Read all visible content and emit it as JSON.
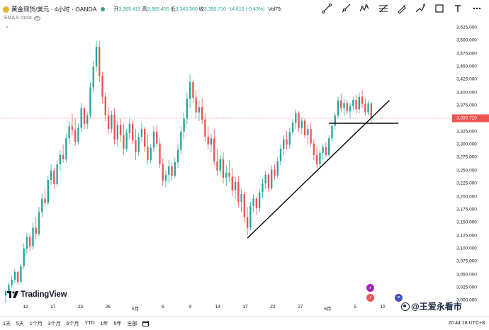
{
  "header": {
    "symbol": "黄金现货/美元 · 4小时 · OANDA",
    "ohlc": [
      {
        "label": "开",
        "value": "3,365.415",
        "dir": "up"
      },
      {
        "label": "高",
        "value": "3,365.455",
        "dir": "up"
      },
      {
        "label": "低",
        "value": "3,343.560",
        "dir": "up"
      },
      {
        "label": "收",
        "value": "3,350.710",
        "dir": "up"
      }
    ],
    "change": "-14.615 (-0.43%)",
    "vol_label": "Vol",
    "vol_value": "79.",
    "indicator": "EMA 9 close",
    "collapse": "^"
  },
  "toolbar": {
    "icons": [
      "trend-line-icon",
      "ray-line-icon",
      "fib-retracement-icon",
      "pattern-icon",
      "brush-icon",
      "path-icon",
      "rectangle-icon",
      "text-icon",
      "more-icon"
    ]
  },
  "price_axis": {
    "ticks": [
      "3,525.000",
      "3,500.000",
      "3,475.000",
      "3,450.000",
      "3,425.000",
      "3,400.000",
      "3,375.000",
      "3,325.000",
      "3,300.000",
      "3,275.000",
      "3,250.000",
      "3,225.000",
      "3,200.000",
      "3,175.000",
      "3,150.000",
      "3,125.000",
      "3,100.000",
      "3,075.000",
      "3,050.000",
      "3,025.000",
      "3,000.000"
    ],
    "last_price": "3,350.710"
  },
  "time_axis": {
    "ticks": [
      "12",
      "17",
      "23",
      "26",
      "5月",
      "6",
      "9",
      "14",
      "17",
      "22",
      "27",
      "6月",
      "5",
      "10"
    ]
  },
  "bottom_bar": {
    "ranges": [
      "1天",
      "5天",
      "1个月",
      "3个月",
      "6个月",
      "YTD",
      "1年",
      "5年",
      "全部"
    ],
    "clock": "20:44:18 UTC+8"
  },
  "logo": {
    "name": "TradingView"
  },
  "watermark": {
    "text": "@王爱永看市"
  },
  "colors": {
    "up": "#26a69a",
    "down": "#ef5350",
    "last_price": "#ef5350",
    "trend_line": "#000000"
  },
  "chart_data": {
    "type": "candlestick",
    "price_range": [
      2995,
      3540
    ],
    "last_price": 3350.71,
    "candles": [
      [
        3010,
        3020,
        2995,
        3018
      ],
      [
        3018,
        3035,
        3012,
        3030
      ],
      [
        3030,
        3048,
        3024,
        3040
      ],
      [
        3040,
        3060,
        3034,
        3055
      ],
      [
        3055,
        3058,
        3030,
        3036
      ],
      [
        3036,
        3070,
        3032,
        3066
      ],
      [
        3066,
        3110,
        3060,
        3100
      ],
      [
        3100,
        3130,
        3090,
        3122
      ],
      [
        3122,
        3128,
        3095,
        3104
      ],
      [
        3104,
        3150,
        3098,
        3140
      ],
      [
        3140,
        3160,
        3118,
        3128
      ],
      [
        3128,
        3180,
        3124,
        3170
      ],
      [
        3170,
        3205,
        3160,
        3196
      ],
      [
        3196,
        3215,
        3180,
        3188
      ],
      [
        3188,
        3240,
        3184,
        3232
      ],
      [
        3232,
        3262,
        3222,
        3250
      ],
      [
        3250,
        3255,
        3215,
        3224
      ],
      [
        3224,
        3270,
        3218,
        3262
      ],
      [
        3262,
        3290,
        3250,
        3280
      ],
      [
        3280,
        3300,
        3265,
        3272
      ],
      [
        3272,
        3320,
        3266,
        3312
      ],
      [
        3312,
        3345,
        3300,
        3335
      ],
      [
        3335,
        3360,
        3318,
        3328
      ],
      [
        3328,
        3350,
        3298,
        3305
      ],
      [
        3305,
        3340,
        3300,
        3332
      ],
      [
        3332,
        3380,
        3325,
        3370
      ],
      [
        3370,
        3372,
        3330,
        3340
      ],
      [
        3340,
        3362,
        3330,
        3356
      ],
      [
        3356,
        3420,
        3350,
        3410
      ],
      [
        3410,
        3460,
        3400,
        3450
      ],
      [
        3450,
        3500,
        3440,
        3488
      ],
      [
        3488,
        3500,
        3420,
        3432
      ],
      [
        3432,
        3440,
        3380,
        3392
      ],
      [
        3392,
        3400,
        3345,
        3356
      ],
      [
        3356,
        3372,
        3320,
        3330
      ],
      [
        3330,
        3365,
        3322,
        3358
      ],
      [
        3358,
        3370,
        3300,
        3310
      ],
      [
        3310,
        3345,
        3296,
        3338
      ],
      [
        3338,
        3350,
        3305,
        3318
      ],
      [
        3318,
        3340,
        3280,
        3292
      ],
      [
        3292,
        3330,
        3286,
        3322
      ],
      [
        3322,
        3350,
        3310,
        3340
      ],
      [
        3340,
        3346,
        3300,
        3308
      ],
      [
        3308,
        3330,
        3270,
        3285
      ],
      [
        3285,
        3322,
        3278,
        3315
      ],
      [
        3315,
        3342,
        3306,
        3330
      ],
      [
        3330,
        3334,
        3286,
        3296
      ],
      [
        3296,
        3320,
        3262,
        3270
      ],
      [
        3270,
        3300,
        3264,
        3294
      ],
      [
        3294,
        3335,
        3285,
        3325
      ],
      [
        3325,
        3338,
        3295,
        3302
      ],
      [
        3302,
        3312,
        3255,
        3262
      ],
      [
        3262,
        3274,
        3220,
        3230
      ],
      [
        3230,
        3250,
        3218,
        3242
      ],
      [
        3242,
        3270,
        3225,
        3258
      ],
      [
        3258,
        3265,
        3230,
        3240
      ],
      [
        3240,
        3275,
        3235,
        3266
      ],
      [
        3266,
        3300,
        3255,
        3290
      ],
      [
        3290,
        3335,
        3282,
        3325
      ],
      [
        3325,
        3362,
        3310,
        3350
      ],
      [
        3350,
        3400,
        3340,
        3388
      ],
      [
        3388,
        3435,
        3370,
        3420
      ],
      [
        3420,
        3425,
        3380,
        3390
      ],
      [
        3390,
        3405,
        3350,
        3362
      ],
      [
        3362,
        3385,
        3345,
        3372
      ],
      [
        3372,
        3390,
        3340,
        3348
      ],
      [
        3348,
        3360,
        3305,
        3315
      ],
      [
        3315,
        3335,
        3290,
        3300
      ],
      [
        3300,
        3320,
        3285,
        3312
      ],
      [
        3312,
        3330,
        3260,
        3268
      ],
      [
        3268,
        3290,
        3240,
        3250
      ],
      [
        3250,
        3280,
        3242,
        3272
      ],
      [
        3272,
        3285,
        3225,
        3236
      ],
      [
        3236,
        3260,
        3220,
        3246
      ],
      [
        3246,
        3270,
        3228,
        3238
      ],
      [
        3238,
        3255,
        3200,
        3212
      ],
      [
        3212,
        3238,
        3195,
        3228
      ],
      [
        3228,
        3240,
        3180,
        3190
      ],
      [
        3190,
        3215,
        3170,
        3205
      ],
      [
        3205,
        3210,
        3150,
        3160
      ],
      [
        3160,
        3180,
        3125,
        3140
      ],
      [
        3140,
        3190,
        3135,
        3182
      ],
      [
        3182,
        3205,
        3170,
        3196
      ],
      [
        3196,
        3200,
        3165,
        3178
      ],
      [
        3178,
        3215,
        3170,
        3208
      ],
      [
        3208,
        3235,
        3198,
        3225
      ],
      [
        3225,
        3250,
        3215,
        3242
      ],
      [
        3242,
        3246,
        3208,
        3216
      ],
      [
        3216,
        3260,
        3212,
        3252
      ],
      [
        3252,
        3262,
        3232,
        3240
      ],
      [
        3240,
        3275,
        3235,
        3268
      ],
      [
        3268,
        3300,
        3260,
        3292
      ],
      [
        3292,
        3318,
        3280,
        3310
      ],
      [
        3310,
        3326,
        3290,
        3300
      ],
      [
        3300,
        3332,
        3292,
        3324
      ],
      [
        3324,
        3350,
        3318,
        3342
      ],
      [
        3342,
        3368,
        3330,
        3360
      ],
      [
        3360,
        3364,
        3325,
        3332
      ],
      [
        3332,
        3352,
        3320,
        3346
      ],
      [
        3346,
        3350,
        3312,
        3318
      ],
      [
        3318,
        3338,
        3300,
        3330
      ],
      [
        3330,
        3342,
        3295,
        3302
      ],
      [
        3302,
        3310,
        3270,
        3280
      ],
      [
        3280,
        3296,
        3255,
        3262
      ],
      [
        3262,
        3290,
        3255,
        3284
      ],
      [
        3284,
        3300,
        3272,
        3295
      ],
      [
        3295,
        3305,
        3275,
        3280
      ],
      [
        3280,
        3318,
        3276,
        3312
      ],
      [
        3312,
        3340,
        3306,
        3336
      ],
      [
        3336,
        3362,
        3328,
        3356
      ],
      [
        3356,
        3392,
        3350,
        3385
      ],
      [
        3385,
        3398,
        3362,
        3370
      ],
      [
        3370,
        3388,
        3355,
        3380
      ],
      [
        3380,
        3386,
        3358,
        3364
      ],
      [
        3364,
        3380,
        3350,
        3374
      ],
      [
        3374,
        3392,
        3366,
        3386
      ],
      [
        3386,
        3396,
        3360,
        3368
      ],
      [
        3368,
        3400,
        3360,
        3392
      ],
      [
        3392,
        3405,
        3370,
        3378
      ],
      [
        3378,
        3390,
        3355,
        3362
      ],
      [
        3362,
        3385,
        3356,
        3379
      ],
      [
        3379,
        3382,
        3343,
        3351
      ]
    ],
    "drawings": [
      {
        "type": "trend-line",
        "from": [
          80,
          3120
        ],
        "to": [
          127,
          3385
        ]
      },
      {
        "type": "horizontal-segment",
        "from": [
          107,
          3341
        ],
        "to": [
          130,
          3341
        ]
      }
    ]
  }
}
